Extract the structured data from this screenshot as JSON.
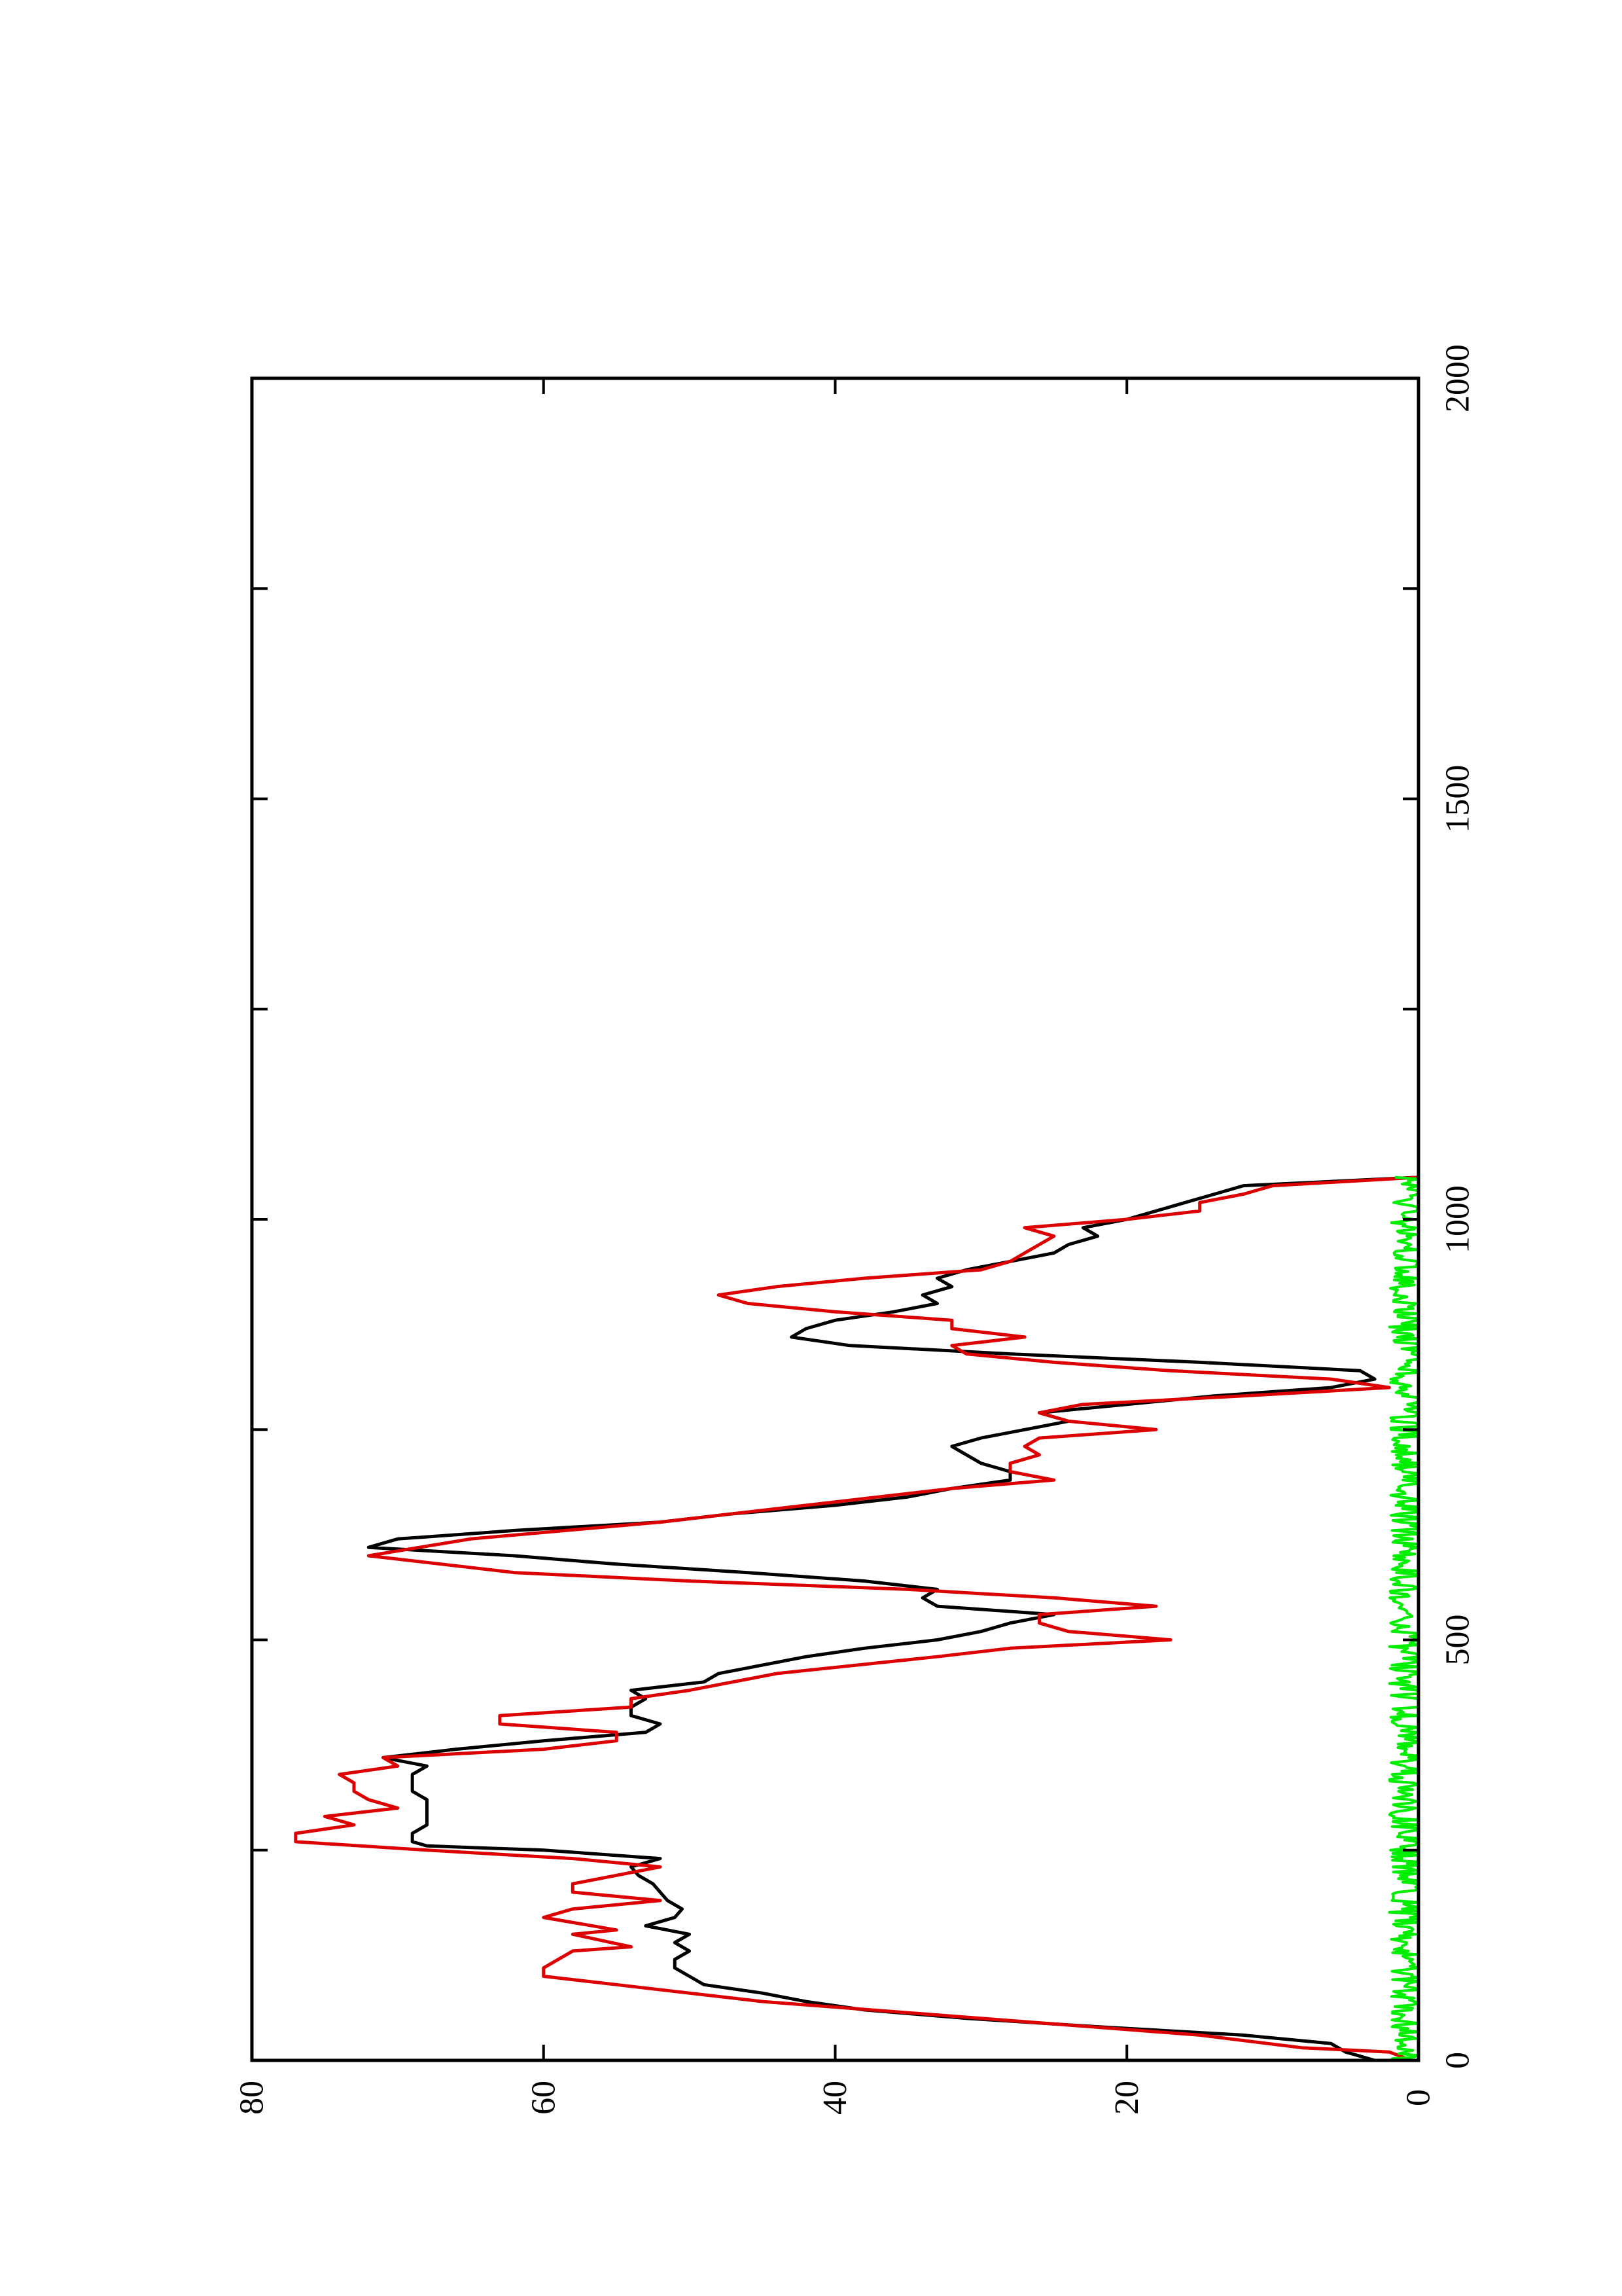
{
  "chart_data": {
    "type": "line",
    "orientation": "rotated-90-ccw",
    "title": "",
    "xlabel": "",
    "ylabel": "",
    "xlim": [
      0,
      2000
    ],
    "ylim": [
      0,
      80
    ],
    "x_ticks": [
      0,
      500,
      1000,
      1500,
      2000
    ],
    "x_tick_labels": [
      "0",
      "500",
      "1000",
      "1500",
      "2000"
    ],
    "y_ticks": [
      0,
      20,
      40,
      60,
      80
    ],
    "y_tick_labels": [
      "0",
      "20",
      "40",
      "60",
      "80"
    ],
    "x_minor_ticks": [
      250,
      750,
      1250,
      1750
    ],
    "grid": false,
    "legend": "none",
    "colors": {
      "black": "#000000",
      "red": "#dd0000",
      "green": "#00ee00",
      "frame": "#000000"
    },
    "series": [
      {
        "color": "#000000",
        "x": [
          0,
          10,
          20,
          30,
          40,
          50,
          60,
          70,
          80,
          90,
          100,
          110,
          120,
          130,
          140,
          150,
          160,
          170,
          180,
          190,
          200,
          210,
          220,
          230,
          240,
          250,
          255,
          260,
          270,
          280,
          290,
          300,
          310,
          320,
          330,
          340,
          350,
          360,
          370,
          380,
          390,
          400,
          410,
          420,
          430,
          440,
          450,
          460,
          470,
          480,
          490,
          500,
          510,
          520,
          530,
          540,
          550,
          560,
          570,
          580,
          590,
          600,
          610,
          620,
          630,
          640,
          650,
          660,
          670,
          680,
          690,
          700,
          710,
          720,
          730,
          740,
          750,
          760,
          770,
          780,
          790,
          800,
          810,
          820,
          830,
          840,
          850,
          860,
          870,
          880,
          890,
          900,
          910,
          920,
          930,
          940,
          950,
          960,
          970,
          980,
          990,
          1000,
          1010,
          1020,
          1030,
          1040,
          1050
        ],
        "values": [
          3,
          5,
          6,
          12,
          22,
          31,
          38,
          42,
          45,
          49,
          50,
          51,
          51,
          50,
          51,
          50,
          53,
          51,
          50.5,
          51.5,
          52,
          52.5,
          53.5,
          54,
          52,
          60,
          68,
          69,
          69,
          68,
          68,
          68,
          68,
          69,
          69,
          69,
          68,
          71,
          66,
          60,
          53,
          52,
          54,
          54,
          53,
          54,
          49,
          48,
          45,
          42,
          38,
          33,
          30,
          28,
          25,
          33,
          34,
          33,
          38,
          46,
          55,
          62,
          72,
          70,
          62,
          52,
          47,
          40,
          35,
          32,
          28,
          28,
          30,
          31,
          32,
          30,
          27,
          24,
          26,
          20,
          14,
          6,
          3,
          4,
          15,
          28,
          39,
          43,
          42,
          40,
          36,
          33,
          34,
          32,
          33,
          31,
          28,
          25,
          24,
          22,
          23,
          20,
          18,
          16,
          14,
          12,
          0
        ]
      },
      {
        "color": "#dd0000",
        "x": [
          0,
          10,
          15,
          30,
          50,
          70,
          90,
          100,
          110,
          130,
          135,
          150,
          155,
          170,
          180,
          190,
          200,
          210,
          220,
          230,
          240,
          250,
          260,
          270,
          280,
          290,
          300,
          310,
          320,
          330,
          340,
          350,
          360,
          370,
          380,
          390,
          400,
          410,
          420,
          430,
          440,
          460,
          480,
          490,
          500,
          510,
          520,
          530,
          540,
          550,
          560,
          570,
          580,
          600,
          620,
          640,
          660,
          680,
          690,
          700,
          710,
          720,
          730,
          740,
          750,
          760,
          770,
          780,
          790,
          800,
          810,
          820,
          830,
          840,
          850,
          860,
          870,
          880,
          890,
          900,
          910,
          920,
          930,
          940,
          950,
          960,
          970,
          980,
          990,
          1000,
          1010,
          1020,
          1030,
          1040,
          1050
        ],
        "values": [
          0.5,
          2,
          8,
          15,
          30,
          45,
          55,
          60,
          60,
          58,
          54,
          58,
          55,
          60,
          58,
          52,
          58,
          58,
          55,
          52,
          58,
          68,
          77,
          77,
          73,
          75,
          70,
          72,
          73,
          73,
          74,
          70,
          71,
          60,
          55,
          55,
          63,
          63,
          54,
          54,
          50,
          44,
          33,
          28,
          17,
          24,
          26,
          26,
          18,
          25,
          35,
          50,
          62,
          72,
          65,
          52,
          42,
          32,
          25,
          28,
          28,
          26,
          27,
          26,
          18,
          24,
          26,
          23,
          12,
          2,
          6,
          17,
          25,
          31,
          32,
          27,
          32,
          32,
          40,
          46,
          48,
          44,
          38,
          30,
          28,
          27,
          26,
          25,
          27,
          20,
          15,
          15,
          12,
          10,
          0
        ]
      },
      {
        "color": "#00ee00",
        "noise": true,
        "x_range": [
          0,
          1050
        ],
        "baseline": 0.8,
        "amplitude": 1.2
      }
    ]
  }
}
